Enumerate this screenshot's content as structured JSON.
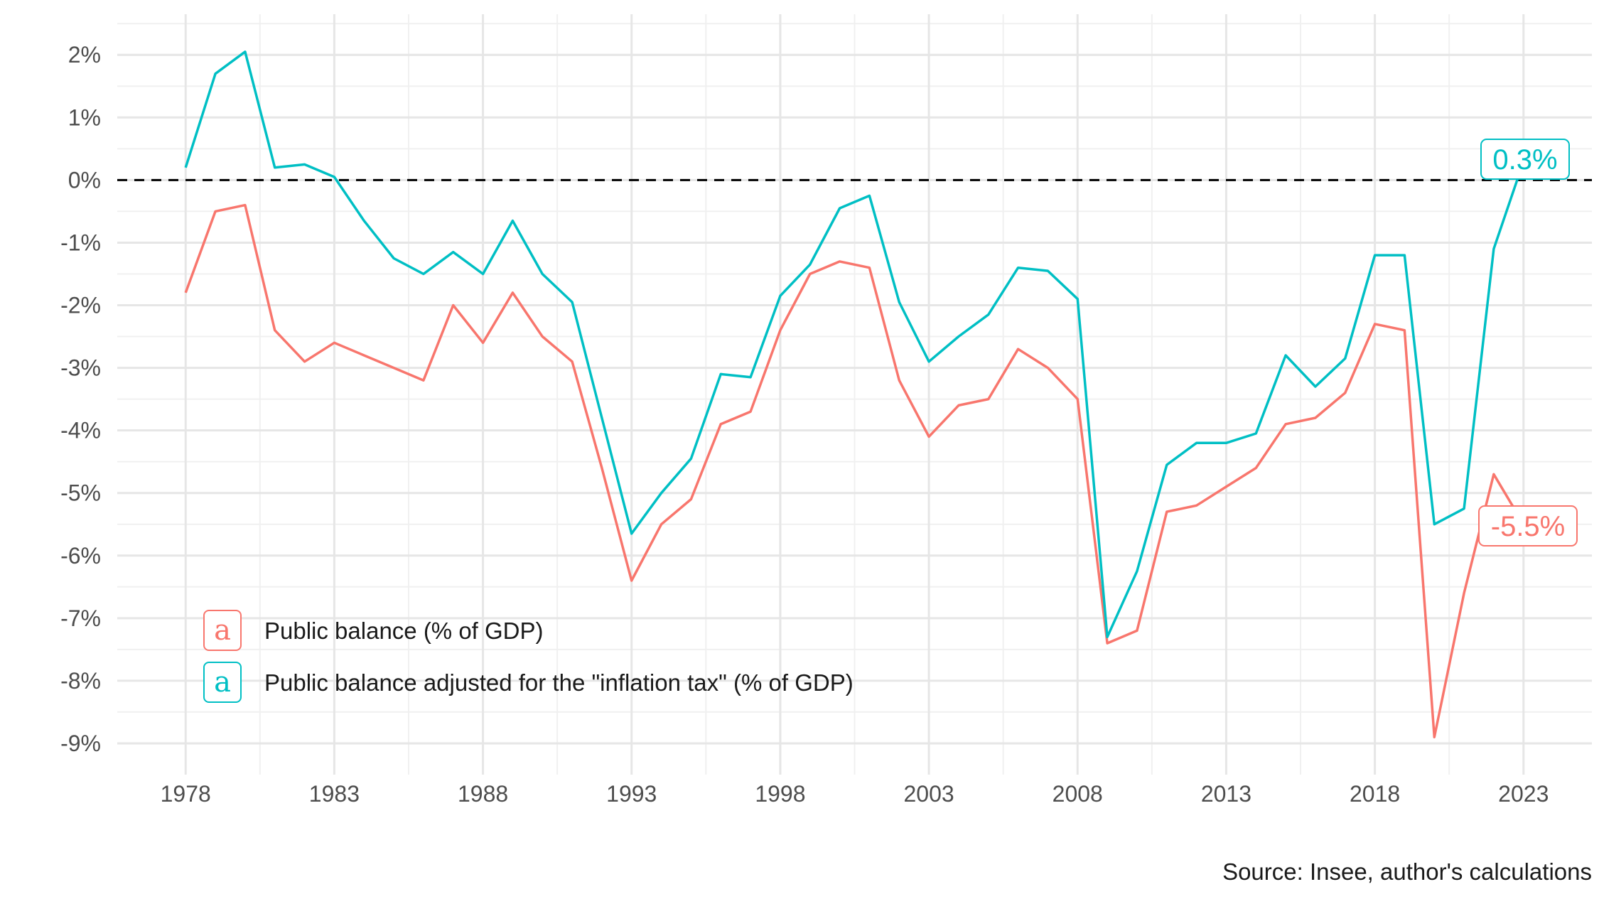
{
  "chart_data": {
    "type": "line",
    "x": [
      1978,
      1979,
      1980,
      1981,
      1982,
      1983,
      1984,
      1985,
      1986,
      1987,
      1988,
      1989,
      1990,
      1991,
      1992,
      1993,
      1994,
      1995,
      1996,
      1997,
      1998,
      1999,
      2000,
      2001,
      2002,
      2003,
      2004,
      2005,
      2006,
      2007,
      2008,
      2009,
      2010,
      2011,
      2012,
      2013,
      2014,
      2015,
      2016,
      2017,
      2018,
      2019,
      2020,
      2021,
      2022,
      2023
    ],
    "series": [
      {
        "name": "Public balance (% of GDP)",
        "color": "#F8766D",
        "values": [
          -1.8,
          -0.5,
          -0.4,
          -2.4,
          -2.9,
          -2.6,
          -2.8,
          -3.0,
          -3.2,
          -2.0,
          -2.6,
          -1.8,
          -2.5,
          -2.9,
          -4.6,
          -6.4,
          -5.5,
          -5.1,
          -3.9,
          -3.7,
          -2.4,
          -1.5,
          -1.3,
          -1.4,
          -3.2,
          -4.1,
          -3.6,
          -3.5,
          -2.7,
          -3.0,
          -3.5,
          -7.4,
          -7.2,
          -5.3,
          -5.2,
          -4.9,
          -4.6,
          -3.9,
          -3.8,
          -3.4,
          -2.3,
          -2.4,
          -8.9,
          -6.6,
          -4.7,
          -5.5
        ],
        "end_label": "-5.5%"
      },
      {
        "name": "Public balance adjusted for the \"inflation tax\" (% of GDP)",
        "color": "#00BFC4",
        "values": [
          0.2,
          1.7,
          2.05,
          0.2,
          0.25,
          0.05,
          -0.65,
          -1.25,
          -1.5,
          -1.15,
          -1.5,
          -0.65,
          -1.5,
          -1.95,
          -3.8,
          -5.65,
          -5.0,
          -4.45,
          -3.1,
          -3.15,
          -1.85,
          -1.35,
          -0.45,
          -0.25,
          -1.95,
          -2.9,
          -2.5,
          -2.15,
          -1.4,
          -1.45,
          -1.9,
          -7.3,
          -6.25,
          -4.55,
          -4.2,
          -4.2,
          -4.05,
          -2.8,
          -3.3,
          -2.85,
          -1.2,
          -1.2,
          -5.5,
          -5.25,
          -1.1,
          0.3
        ],
        "end_label": "0.3%"
      }
    ],
    "xticks": [
      1978,
      1983,
      1988,
      1993,
      1998,
      2003,
      2008,
      2013,
      2018,
      2023
    ],
    "xtick_labels": [
      "1978",
      "1983",
      "1988",
      "1993",
      "1998",
      "2003",
      "2008",
      "2013",
      "2018",
      "2023"
    ],
    "yticks": [
      2,
      1,
      0,
      -1,
      -2,
      -3,
      -4,
      -5,
      -6,
      -7,
      -8,
      -9
    ],
    "ytick_labels": [
      "2%",
      "1%",
      "0%",
      "-1%",
      "-2%",
      "-3%",
      "-4%",
      "-5%",
      "-6%",
      "-7%",
      "-8%",
      "-9%"
    ],
    "xlim": [
      1975.7,
      2025.3
    ],
    "ylim": [
      -9.5,
      2.65
    ],
    "reference_line": {
      "y": 0,
      "style": "dashed",
      "color": "#000000"
    },
    "grid": true,
    "legend_position": "bottom-left inside",
    "legend_key_glyph": "a",
    "caption": "Source: Insee, author's calculations",
    "title": "",
    "xlabel": "",
    "ylabel": ""
  }
}
